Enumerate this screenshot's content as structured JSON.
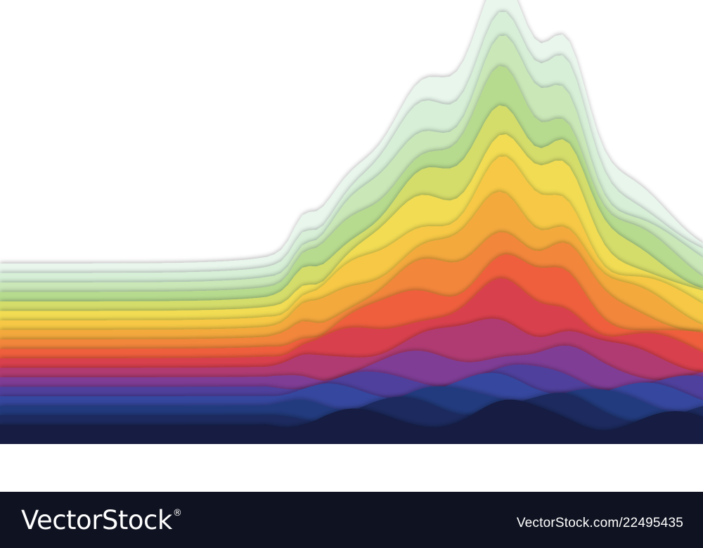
{
  "footer": {
    "brand": "VectorStock",
    "trademark": "®",
    "image_ref": "VectorStock.com/22495435"
  },
  "artwork": {
    "background": "#ffffff",
    "floor_color": "#070b1d",
    "palette": [
      "#e8f6ec",
      "#d6efd6",
      "#c9e7b7",
      "#b6db8e",
      "#d4dd6a",
      "#f1dc52",
      "#f6c844",
      "#f4a93e",
      "#f2863a",
      "#ef5f3c",
      "#d9414e",
      "#b03a72",
      "#7f3c96",
      "#4f3f9d",
      "#34479e",
      "#243a7e",
      "#1b2c5f",
      "#131f42"
    ]
  }
}
